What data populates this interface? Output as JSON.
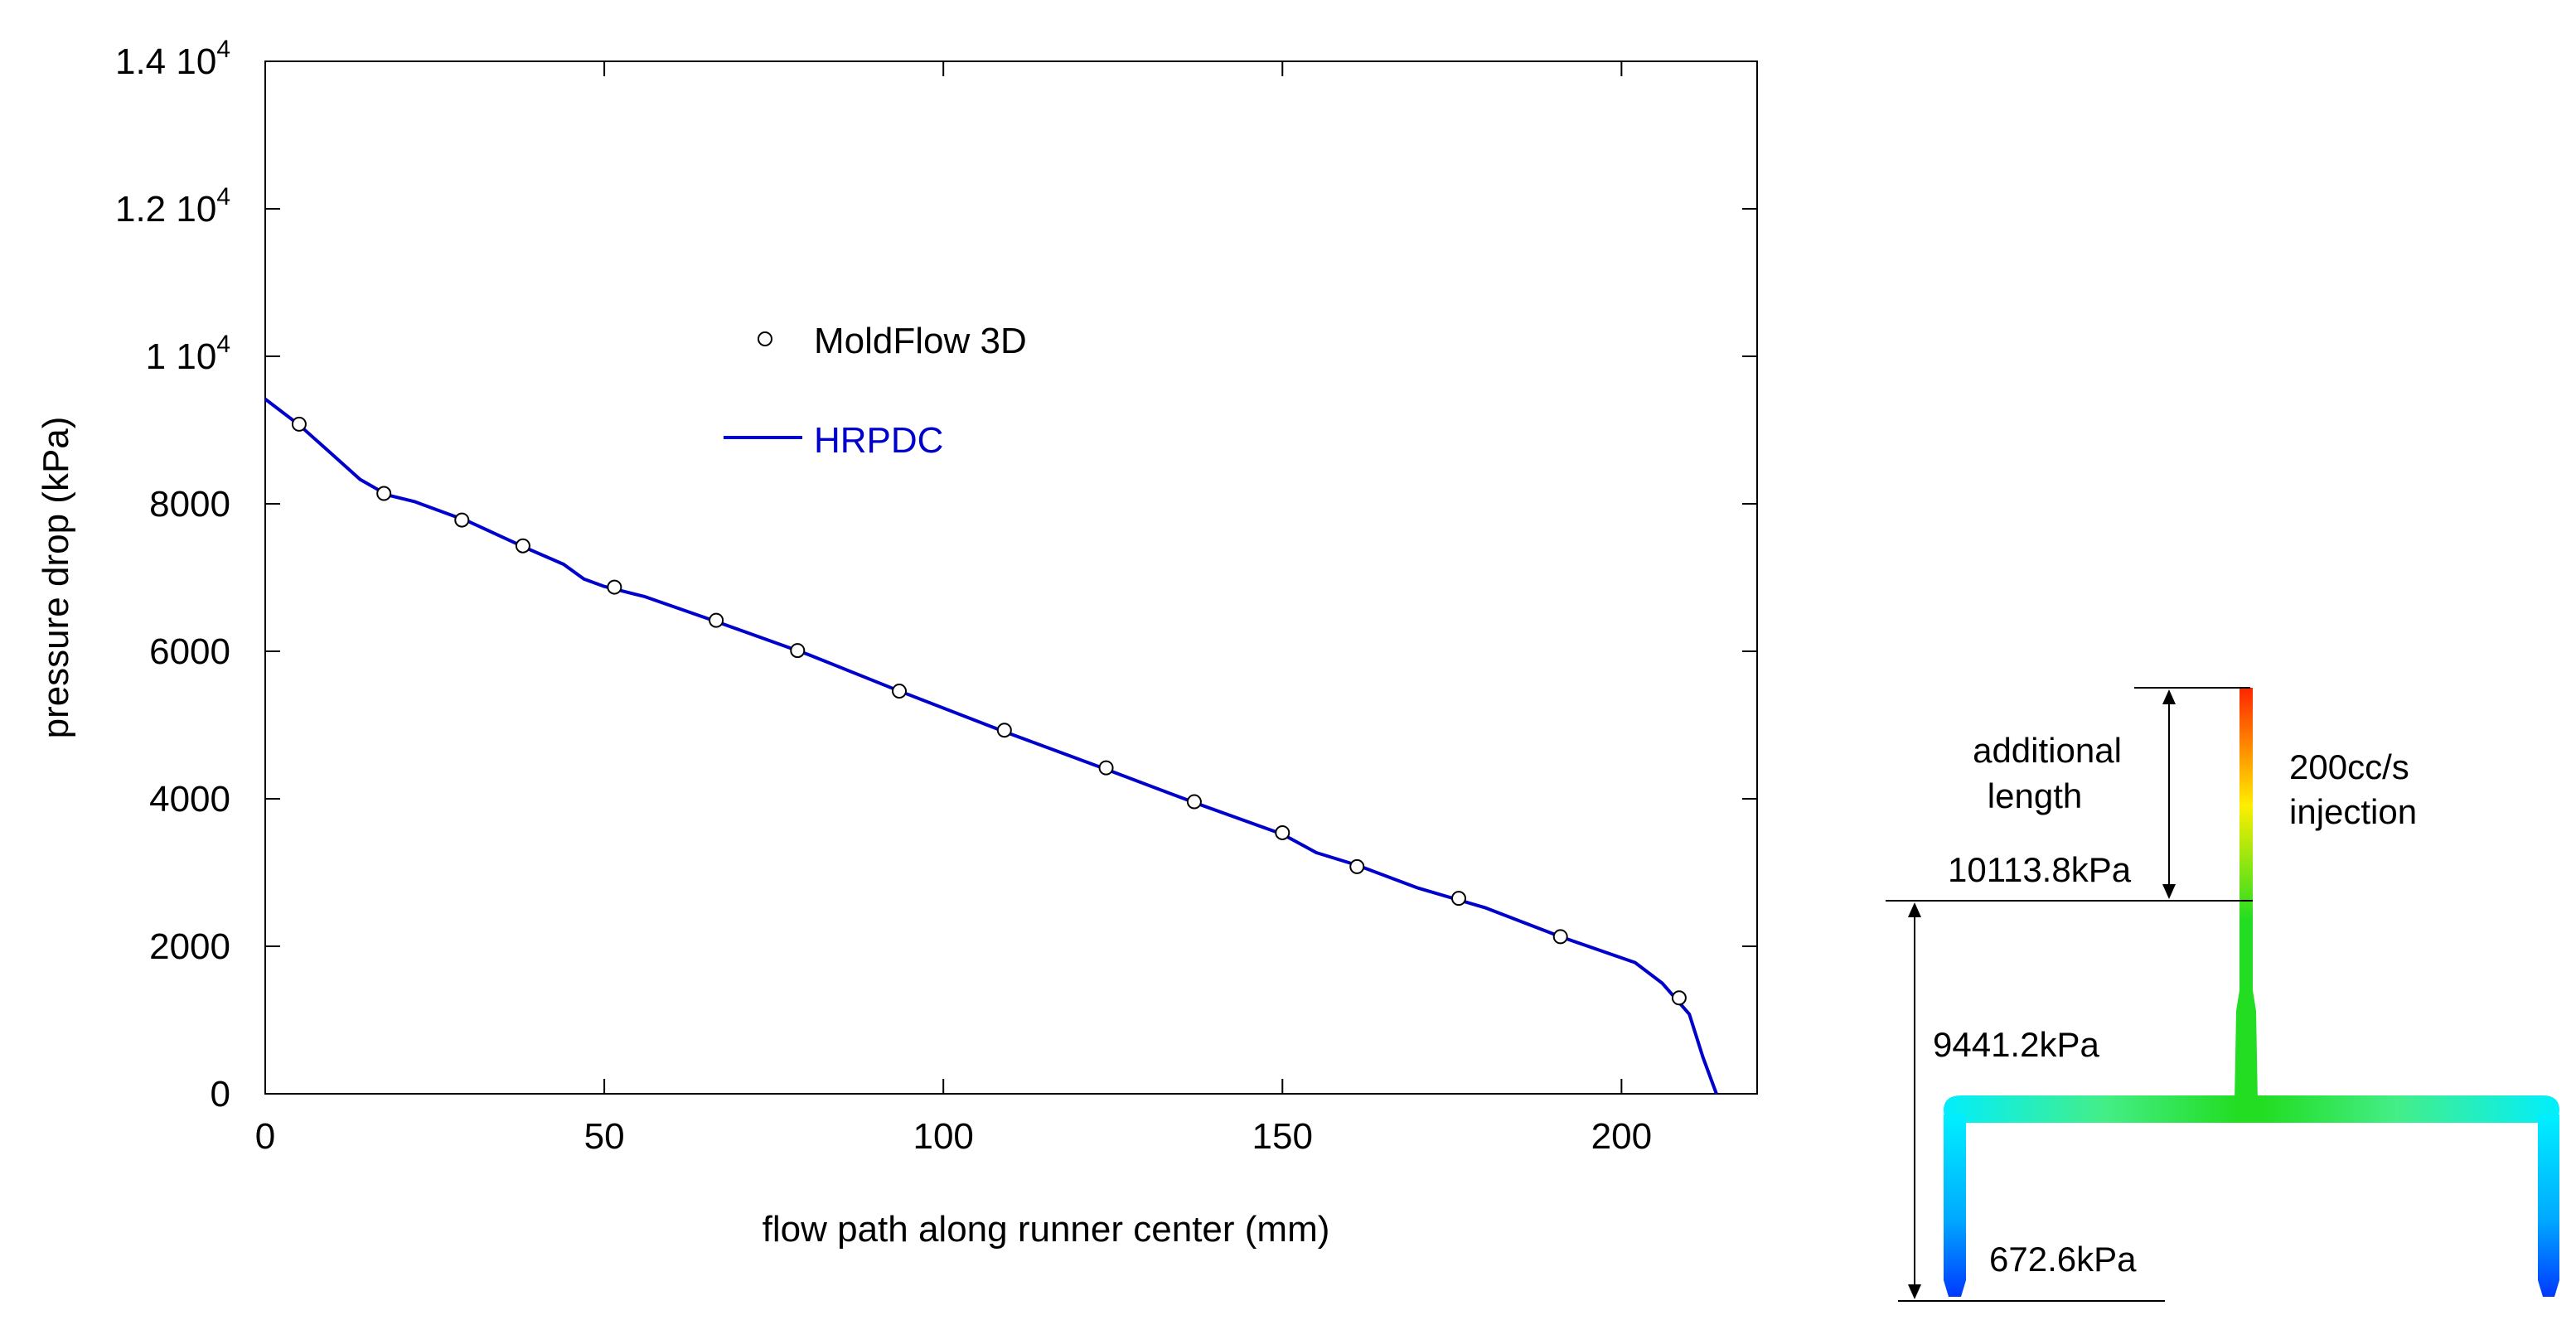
{
  "chart_data": {
    "type": "line",
    "xlabel": "flow path along runner center (mm)",
    "ylabel": "pressure drop (kPa)",
    "xlim": [
      0,
      220
    ],
    "ylim": [
      0,
      14000
    ],
    "x_ticks": [
      0,
      50,
      100,
      150,
      200
    ],
    "y_ticks": [
      0,
      2000,
      4000,
      6000,
      8000,
      10000,
      12000,
      14000
    ],
    "x_tick_labels": [
      "0",
      "50",
      "100",
      "150",
      "200"
    ],
    "y_tick_labels": [
      {
        "base": "0",
        "exp": ""
      },
      {
        "base": "2000",
        "exp": ""
      },
      {
        "base": "4000",
        "exp": ""
      },
      {
        "base": "6000",
        "exp": ""
      },
      {
        "base": "8000",
        "exp": ""
      },
      {
        "base": "1 10",
        "exp": "4"
      },
      {
        "base": "1.2 10",
        "exp": "4"
      },
      {
        "base": "1.4 10",
        "exp": "4"
      }
    ],
    "legend_position": "top-center",
    "series": [
      {
        "name": "MoldFlow 3D",
        "style": "markers",
        "marker": "open-circle",
        "color": "#000000",
        "points": [
          [
            5,
            9080
          ],
          [
            17.5,
            8140
          ],
          [
            29,
            7780
          ],
          [
            38,
            7430
          ],
          [
            51.5,
            6870
          ],
          [
            66.5,
            6420
          ],
          [
            78.5,
            6010
          ],
          [
            93.5,
            5460
          ],
          [
            109,
            4930
          ],
          [
            124,
            4420
          ],
          [
            137,
            3960
          ],
          [
            150,
            3540
          ],
          [
            161,
            3080
          ],
          [
            176,
            2650
          ],
          [
            191,
            2130
          ],
          [
            208.5,
            1300
          ]
        ]
      },
      {
        "name": "HRPDC",
        "style": "line",
        "color": "#0000cc",
        "points": [
          [
            0,
            9420
          ],
          [
            5,
            9070
          ],
          [
            10,
            8660
          ],
          [
            14,
            8330
          ],
          [
            18,
            8120
          ],
          [
            22,
            8030
          ],
          [
            30,
            7760
          ],
          [
            38,
            7420
          ],
          [
            44,
            7180
          ],
          [
            47,
            6980
          ],
          [
            50,
            6880
          ],
          [
            56,
            6740
          ],
          [
            66,
            6420
          ],
          [
            80,
            5960
          ],
          [
            93,
            5480
          ],
          [
            109,
            4910
          ],
          [
            124,
            4400
          ],
          [
            137,
            3950
          ],
          [
            150,
            3520
          ],
          [
            155,
            3270
          ],
          [
            161,
            3100
          ],
          [
            170,
            2790
          ],
          [
            180,
            2520
          ],
          [
            191,
            2130
          ],
          [
            202,
            1780
          ],
          [
            206,
            1500
          ],
          [
            210,
            1080
          ],
          [
            212,
            500
          ],
          [
            214,
            0
          ]
        ]
      }
    ]
  },
  "diagram": {
    "labels": {
      "additional": "additional",
      "length": "length",
      "rate": "200cc/s",
      "injection": "injection",
      "p1": "10113.8kPa",
      "p2": "9441.2kPa",
      "p3": "672.6kPa"
    },
    "colors": {
      "red": "#ff2200",
      "yellow": "#ffee00",
      "green": "#22dd22",
      "cyan": "#00eeff",
      "blue": "#0044ff"
    }
  }
}
